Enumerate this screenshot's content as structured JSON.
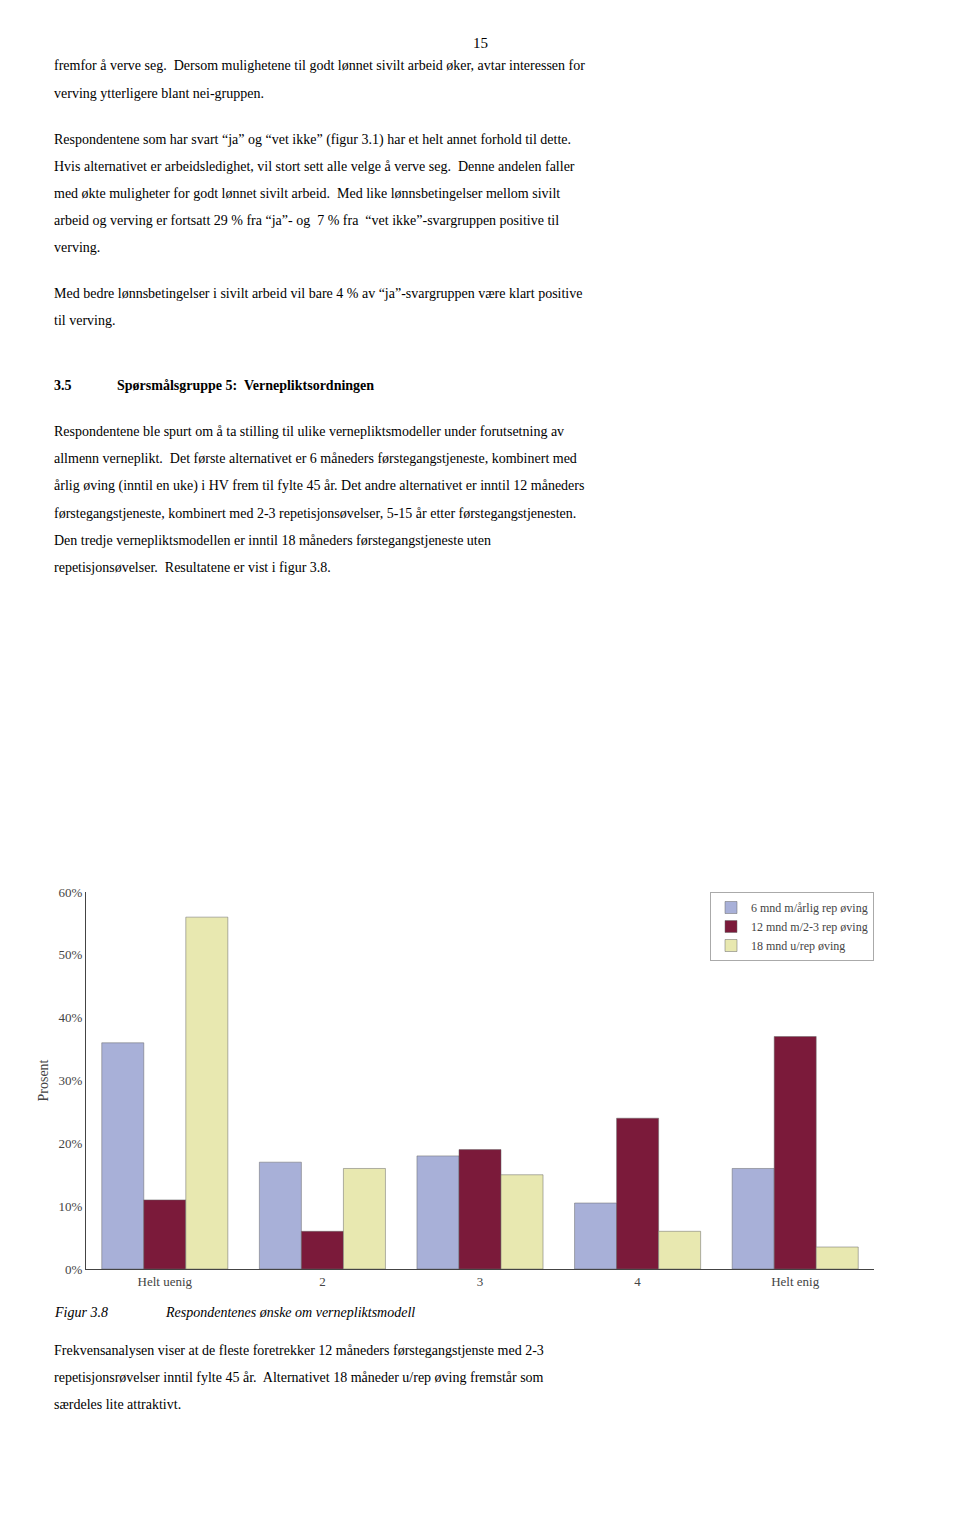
{
  "chart_data": {
    "type": "bar",
    "categories": [
      "Helt uenig",
      "2",
      "3",
      "4",
      "Helt enig"
    ],
    "series": [
      {
        "name": "6 mnd m/årlig rep øving",
        "color": "#a8b0d8",
        "values": [
          36,
          17,
          18,
          10.5,
          16
        ]
      },
      {
        "name": "12 mnd m/2-3 rep øving",
        "color": "#7b1a3a",
        "values": [
          11,
          6,
          19,
          24,
          37
        ]
      },
      {
        "name": "18 mnd u/rep øving",
        "color": "#e8e8b0",
        "values": [
          56,
          16,
          15,
          6,
          3.5
        ]
      }
    ],
    "ylabel": "Prosent",
    "ylim": [
      0,
      60
    ],
    "yticks": [
      {
        "value": 0,
        "label": "0%"
      },
      {
        "value": 10,
        "label": "10%"
      },
      {
        "value": 20,
        "label": "20%"
      },
      {
        "value": 30,
        "label": "30%"
      },
      {
        "value": 40,
        "label": "40%"
      },
      {
        "value": 50,
        "label": "50%"
      },
      {
        "value": 60,
        "label": "60%"
      }
    ],
    "grid": false,
    "legend": "upper right",
    "annotations": [
      "15",
      "fremfor å verve seg.  Dersom mulighetene til godt lønnet sivilt arbeid øker, avtar interessen for",
      "verving ytterligere blant nei-gruppen.",
      "Respondentene som har svart “ja” og “vet ikke” (figur 3.1) har et helt annet forhold til dette.",
      "Hvis alternativet er arbeidsledighet, vil stort sett alle velge å verve seg.  Denne andelen faller",
      "med økte muligheter for godt lønnet sivilt arbeid.  Med like lønnsbetingelser mellom sivilt",
      "arbeid og verving er fortsatt 29 % fra “ja”- og  7 % fra  “vet ikke”-svargruppen positive til",
      "verving.",
      "Med bedre lønnsbetingelser i sivilt arbeid vil bare 4 % av “ja”-svargruppen være klart positive",
      "til verving.",
      "3.5",
      "Spørsmålsgruppe 5:  Vernepliktsordningen",
      "Respondentene ble spurt om å ta stilling til ulike vernepliktsmodeller under forutsetning av",
      "allmenn verneplikt.  Det første alternativet er 6 måneders førstegangstjeneste, kombinert med",
      "årlig øving (inntil en uke) i HV frem til fylte 45 år. Det andre alternativet er inntil 12 måneders",
      "førstegangstjeneste, kombinert med 2-3 repetisjonsøvelser, 5-15 år etter førstegangstjenesten.",
      "Den tredje vernepliktsmodellen er inntil 18 måneders førstegangstjeneste uten",
      "repetisjonsøvelser.  Resultatene er vist i figur 3.8.",
      "Figur 3.8",
      "Respondentenes ønske om vernepliktsmodell",
      "Frekvensanalysen viser at de fleste foretrekker 12 måneders førstegangstjenste med 2-3",
      "repetisjonsrøvelser inntil fylte 45 år.  Alternativet 18 måneder u/rep øving fremstår som",
      "særdeles lite attraktivt."
    ]
  }
}
